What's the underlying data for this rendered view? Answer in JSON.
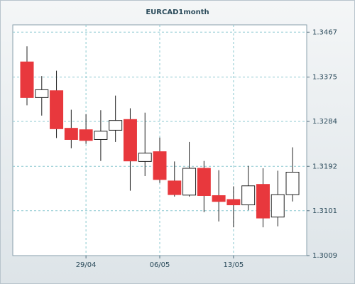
{
  "chart_data": {
    "type": "candlestick",
    "title": "EURCAD1month",
    "categories": [
      null,
      null,
      null,
      null,
      "29/04",
      null,
      null,
      null,
      null,
      "06/05",
      null,
      null,
      null,
      null,
      "13/05",
      null,
      null,
      null,
      null
    ],
    "open": [
      1.3406,
      1.3333,
      1.3347,
      1.327,
      1.3267,
      1.3247,
      1.3266,
      1.3288,
      1.3202,
      1.3222,
      1.3162,
      1.3133,
      1.3188,
      1.3132,
      1.3124,
      1.3113,
      1.3155,
      1.3088,
      1.3134
    ],
    "high": [
      1.3438,
      1.3377,
      1.3388,
      1.3308,
      1.3299,
      1.3307,
      1.3337,
      1.3311,
      1.3302,
      1.3251,
      1.3202,
      1.3242,
      1.3203,
      1.3184,
      1.3151,
      1.3193,
      1.3188,
      1.3183,
      1.3231
    ],
    "low": [
      1.3317,
      1.3296,
      1.325,
      1.3229,
      1.3238,
      1.3203,
      1.3242,
      1.3142,
      1.3172,
      1.3158,
      1.313,
      1.313,
      1.3098,
      1.3079,
      1.3067,
      1.3102,
      1.3067,
      1.3069,
      1.312
    ],
    "close": [
      1.3333,
      1.3349,
      1.3269,
      1.3247,
      1.3245,
      1.3264,
      1.3286,
      1.3203,
      1.3219,
      1.3165,
      1.3134,
      1.3188,
      1.3132,
      1.312,
      1.3113,
      1.3152,
      1.3086,
      1.3134,
      1.318
    ],
    "up_color": "#ffffff",
    "down_color": "#e8383d",
    "ylim": [
      1.3009,
      1.3482
    ],
    "yticks": [
      1.3009,
      1.3101,
      1.3192,
      1.3284,
      1.3375,
      1.3467
    ],
    "grid": true
  }
}
